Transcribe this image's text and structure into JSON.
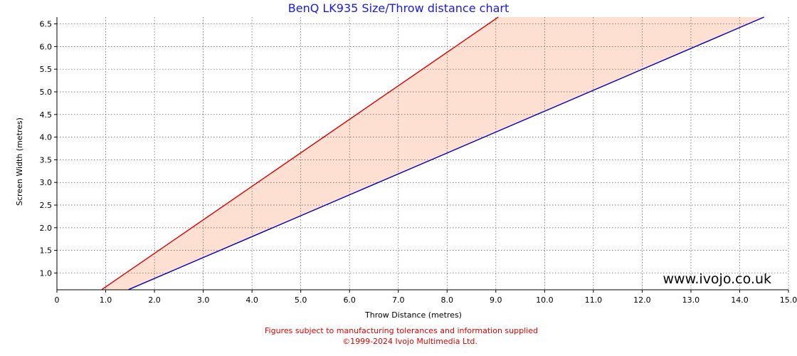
{
  "chart_data": {
    "type": "area",
    "title": "BenQ LK935 Size/Throw distance chart",
    "xlabel": "Throw Distance (metres)",
    "ylabel": "Screen Width (metres)",
    "xlim": [
      0,
      15
    ],
    "ylim": [
      0.63,
      6.65
    ],
    "x_ticks": [
      "0",
      "1.0",
      "2.0",
      "3.0",
      "4.0",
      "5.0",
      "6.0",
      "7.0",
      "8.0",
      "9.0",
      "10.0",
      "11.0",
      "12.0",
      "13.0",
      "14.0",
      "15.0"
    ],
    "y_ticks": [
      "1.0",
      "1.5",
      "2.0",
      "2.5",
      "3.0",
      "3.5",
      "4.0",
      "4.5",
      "5.0",
      "5.5",
      "6.0",
      "6.5"
    ],
    "grid": true,
    "series": [
      {
        "color": "#dd0000",
        "x": [
          0.92,
          9.05
        ],
        "y": [
          0.635,
          6.65
        ]
      },
      {
        "color": "#0000bb",
        "x": [
          1.47,
          14.5
        ],
        "y": [
          0.635,
          6.65
        ]
      }
    ],
    "fill_color": "#fde0d2"
  },
  "watermark": "www.ivojo.co.uk",
  "footer": {
    "line1": "Figures subject to manufacturing tolerances and information supplied",
    "line2": "©1999-2024 Ivojo Multimedia Ltd."
  }
}
